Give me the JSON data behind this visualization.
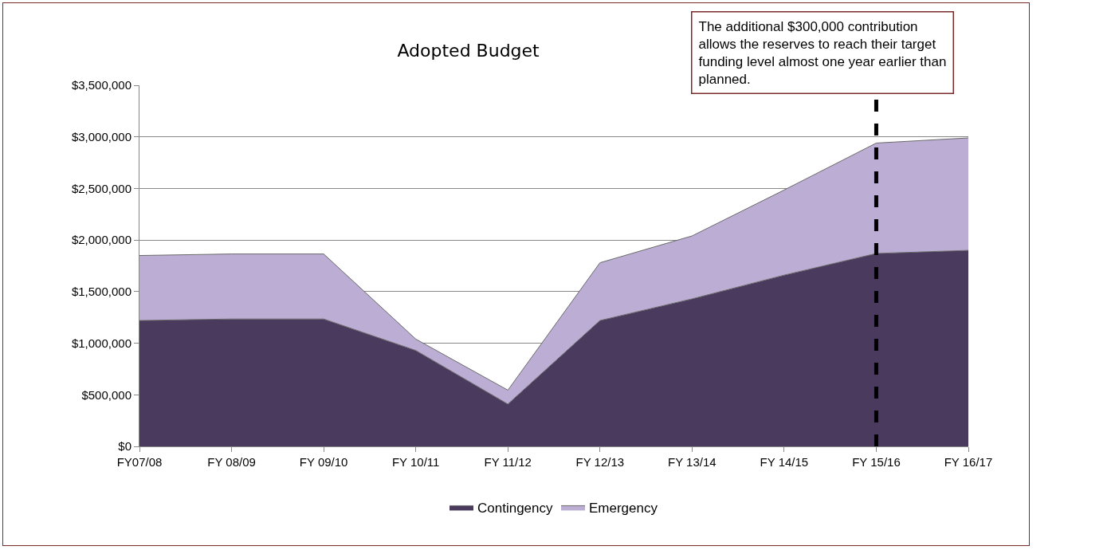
{
  "chart_data": {
    "type": "area",
    "title": "Adopted Budget",
    "categories": [
      "FY07/08",
      "FY 08/09",
      "FY 09/10",
      "FY 10/11",
      "FY 11/12",
      "FY 12/13",
      "FY 13/14",
      "FY 14/15",
      "FY 15/16",
      "FY 16/17"
    ],
    "stacked": true,
    "series": [
      {
        "name": "Contingency",
        "color": "#4a3a5e",
        "values": [
          1220000,
          1235000,
          1235000,
          930000,
          410000,
          1220000,
          1430000,
          1660000,
          1870000,
          1900000
        ]
      },
      {
        "name": "Emergency",
        "color": "#bcadd4",
        "values": [
          630000,
          630000,
          630000,
          110000,
          135000,
          560000,
          610000,
          825000,
          1070000,
          1090000
        ]
      }
    ],
    "ylim": [
      0,
      3500000
    ],
    "yticks": [
      {
        "value": 0,
        "label": "$0"
      },
      {
        "value": 500000,
        "label": "$500,000"
      },
      {
        "value": 1000000,
        "label": "$1,000,000"
      },
      {
        "value": 1500000,
        "label": "$1,500,000"
      },
      {
        "value": 2000000,
        "label": "$2,000,000"
      },
      {
        "value": 2500000,
        "label": "$2,500,000"
      },
      {
        "value": 3000000,
        "label": "$3,000,000"
      },
      {
        "value": 3500000,
        "label": "$3,500,000"
      }
    ],
    "grid": "y",
    "legend": "bottom",
    "ref_lines": [
      {
        "axis": "x",
        "value": "FY 15/16",
        "color": "#000000",
        "line_style": "dashed"
      }
    ],
    "annotations": [
      "The additional $300,000 contribution allows the reserves to reach their target funding level almost one year earlier than planned."
    ]
  }
}
